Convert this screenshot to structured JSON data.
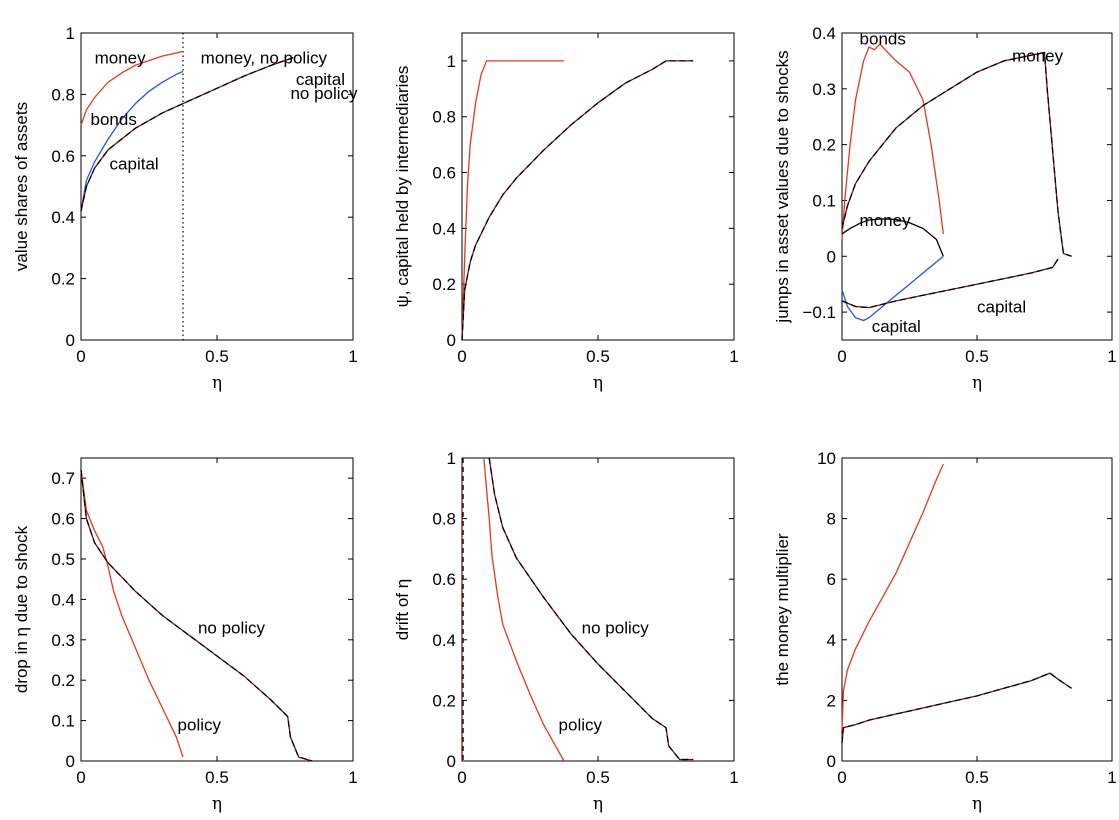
{
  "colors": {
    "policy": "#e8391d",
    "capital_policy": "#2255e8",
    "money_policy": "#000000",
    "no_policy_dash": "#000000",
    "no_policy_base": "#7a1010"
  },
  "chart_data": [
    {
      "id": "p1",
      "type": "line",
      "ylabel": "value shares of assets",
      "xlabel": "η",
      "xlim": [
        0,
        1
      ],
      "ylim": [
        0,
        1
      ],
      "xticks": [
        0,
        0.5,
        1
      ],
      "yticks": [
        0,
        0.2,
        0.4,
        0.6,
        0.8,
        1
      ],
      "xticklabels": [
        "0",
        "0.5",
        "1"
      ],
      "yticklabels": [
        "0",
        "0.2",
        "0.4",
        "0.6",
        "0.8",
        "1"
      ],
      "vlines": [
        {
          "x": 0.375,
          "style": "dotted"
        }
      ],
      "series": [
        {
          "color": "policy",
          "style": "solid",
          "x": [
            0,
            0.02,
            0.05,
            0.1,
            0.15,
            0.2,
            0.25,
            0.3,
            0.35,
            0.375
          ],
          "y": [
            0.7,
            0.75,
            0.79,
            0.84,
            0.87,
            0.895,
            0.91,
            0.925,
            0.935,
            0.94
          ]
        },
        {
          "color": "capital_policy",
          "style": "solid",
          "x": [
            0,
            0.02,
            0.05,
            0.1,
            0.15,
            0.2,
            0.25,
            0.3,
            0.35,
            0.375
          ],
          "y": [
            0.42,
            0.52,
            0.58,
            0.655,
            0.72,
            0.77,
            0.81,
            0.84,
            0.865,
            0.875
          ]
        },
        {
          "color": "no_policy",
          "style": "dashed",
          "x": [
            0,
            0.02,
            0.05,
            0.1,
            0.2,
            0.3,
            0.4,
            0.5,
            0.6,
            0.7,
            0.78
          ],
          "y": [
            0.42,
            0.5,
            0.56,
            0.62,
            0.69,
            0.74,
            0.78,
            0.82,
            0.86,
            0.895,
            0.92
          ]
        }
      ],
      "annotations": [
        {
          "text": "money",
          "x": 0.05,
          "y": 0.92
        },
        {
          "text": "money, no policy",
          "x": 0.44,
          "y": 0.92
        },
        {
          "text": "capital",
          "x": 0.79,
          "y": 0.85
        },
        {
          "text": "no policy",
          "x": 0.77,
          "y": 0.805
        },
        {
          "text": "bonds",
          "x": 0.035,
          "y": 0.72
        },
        {
          "text": "capital",
          "x": 0.105,
          "y": 0.575
        }
      ]
    },
    {
      "id": "p2",
      "type": "line",
      "ylabel": "ψ, capital held by intermediaries",
      "xlabel": "η",
      "xlim": [
        0,
        1
      ],
      "ylim": [
        0,
        1.1
      ],
      "xticks": [
        0,
        0.5,
        1
      ],
      "yticks": [
        0,
        0.2,
        0.4,
        0.6,
        0.8,
        1
      ],
      "xticklabels": [
        "0",
        "0.5",
        "1"
      ],
      "yticklabels": [
        "0",
        "0.2",
        "0.4",
        "0.6",
        "0.8",
        "1"
      ],
      "series": [
        {
          "color": "policy",
          "style": "solid",
          "x": [
            0,
            0.01,
            0.02,
            0.03,
            0.05,
            0.07,
            0.09,
            0.1,
            0.2,
            0.375
          ],
          "y": [
            0,
            0.3,
            0.55,
            0.7,
            0.85,
            0.95,
            1.0,
            1.0,
            1.0,
            1.0
          ]
        },
        {
          "color": "no_policy",
          "style": "dashed",
          "x": [
            0,
            0.01,
            0.03,
            0.05,
            0.1,
            0.15,
            0.2,
            0.3,
            0.4,
            0.5,
            0.6,
            0.7,
            0.75,
            0.85
          ],
          "y": [
            0,
            0.18,
            0.28,
            0.34,
            0.44,
            0.52,
            0.58,
            0.68,
            0.77,
            0.85,
            0.92,
            0.97,
            1.0,
            1.0
          ]
        }
      ],
      "annotations": []
    },
    {
      "id": "p3",
      "type": "line",
      "ylabel": "jumps in asset values due to shocks",
      "xlabel": "η",
      "xlim": [
        0,
        1
      ],
      "ylim": [
        -0.15,
        0.4
      ],
      "xticks": [
        0,
        0.5,
        1
      ],
      "yticks": [
        -0.1,
        0,
        0.1,
        0.2,
        0.3,
        0.4
      ],
      "xticklabels": [
        "0",
        "0.5",
        "1"
      ],
      "yticklabels": [
        "−0.1",
        "0",
        "0.1",
        "0.2",
        "0.3",
        "0.4"
      ],
      "series": [
        {
          "color": "policy",
          "style": "solid",
          "x": [
            0,
            0.01,
            0.03,
            0.05,
            0.08,
            0.1,
            0.12,
            0.14,
            0.16,
            0.2,
            0.25,
            0.3,
            0.33,
            0.36,
            0.375
          ],
          "y": [
            0.03,
            0.1,
            0.2,
            0.28,
            0.35,
            0.375,
            0.37,
            0.38,
            0.37,
            0.35,
            0.33,
            0.28,
            0.2,
            0.1,
            0.04
          ]
        },
        {
          "color": "money_policy",
          "style": "solid",
          "x": [
            0,
            0.03,
            0.07,
            0.1,
            0.15,
            0.2,
            0.25,
            0.3,
            0.35,
            0.375
          ],
          "y": [
            0.04,
            0.05,
            0.06,
            0.065,
            0.067,
            0.066,
            0.06,
            0.05,
            0.03,
            0.0
          ]
        },
        {
          "color": "capital_policy",
          "style": "solid",
          "x": [
            0,
            0.02,
            0.05,
            0.08,
            0.1,
            0.15,
            0.2,
            0.25,
            0.3,
            0.35,
            0.375
          ],
          "y": [
            -0.06,
            -0.09,
            -0.11,
            -0.115,
            -0.11,
            -0.09,
            -0.07,
            -0.05,
            -0.03,
            -0.01,
            0.0
          ]
        },
        {
          "color": "no_policy",
          "style": "dashed",
          "x": [
            0,
            0.02,
            0.05,
            0.1,
            0.2,
            0.3,
            0.4,
            0.5,
            0.6,
            0.7,
            0.75,
            0.76,
            0.8,
            0.82,
            0.85
          ],
          "y": [
            0.05,
            0.09,
            0.13,
            0.17,
            0.23,
            0.27,
            0.3,
            0.33,
            0.35,
            0.36,
            0.365,
            0.3,
            0.08,
            0.005,
            0.0
          ]
        },
        {
          "color": "no_policy",
          "style": "dashed",
          "x": [
            0,
            0.05,
            0.1,
            0.2,
            0.3,
            0.4,
            0.5,
            0.6,
            0.7,
            0.78,
            0.8
          ],
          "y": [
            -0.08,
            -0.09,
            -0.092,
            -0.08,
            -0.07,
            -0.06,
            -0.05,
            -0.04,
            -0.03,
            -0.02,
            -0.005
          ]
        }
      ],
      "annotations": [
        {
          "text": "bonds",
          "x": 0.065,
          "y": 0.39
        },
        {
          "text": "money",
          "x": 0.63,
          "y": 0.36
        },
        {
          "text": "money",
          "x": 0.065,
          "y": 0.065
        },
        {
          "text": "capital",
          "x": 0.5,
          "y": -0.09
        },
        {
          "text": "capital",
          "x": 0.11,
          "y": -0.125
        }
      ]
    },
    {
      "id": "p4",
      "type": "line",
      "ylabel": "drop in η due to shock",
      "xlabel": "η",
      "xlim": [
        0,
        1
      ],
      "ylim": [
        0,
        0.75
      ],
      "xticks": [
        0,
        0.5,
        1
      ],
      "yticks": [
        0,
        0.1,
        0.2,
        0.3,
        0.4,
        0.5,
        0.6,
        0.7
      ],
      "xticklabels": [
        "0",
        "0.5",
        "1"
      ],
      "yticklabels": [
        "0",
        "0.1",
        "0.2",
        "0.3",
        "0.4",
        "0.5",
        "0.6",
        "0.7"
      ],
      "series": [
        {
          "color": "policy",
          "style": "solid",
          "x": [
            0,
            0.02,
            0.05,
            0.08,
            0.1,
            0.12,
            0.15,
            0.2,
            0.25,
            0.3,
            0.35,
            0.375
          ],
          "y": [
            0.72,
            0.62,
            0.57,
            0.53,
            0.48,
            0.42,
            0.36,
            0.28,
            0.2,
            0.13,
            0.06,
            0.01
          ]
        },
        {
          "color": "no_policy",
          "style": "dashed",
          "x": [
            0,
            0.02,
            0.05,
            0.1,
            0.2,
            0.3,
            0.4,
            0.5,
            0.6,
            0.7,
            0.76,
            0.77,
            0.8,
            0.85
          ],
          "y": [
            0.72,
            0.6,
            0.54,
            0.49,
            0.42,
            0.36,
            0.31,
            0.26,
            0.21,
            0.15,
            0.11,
            0.06,
            0.01,
            0.0
          ]
        }
      ],
      "annotations": [
        {
          "text": "no policy",
          "x": 0.43,
          "y": 0.33
        },
        {
          "text": "policy",
          "x": 0.355,
          "y": 0.09
        }
      ]
    },
    {
      "id": "p5",
      "type": "line",
      "ylabel": "drift of η",
      "xlabel": "η",
      "xlim": [
        0,
        1
      ],
      "ylim": [
        0,
        1
      ],
      "xticks": [
        0,
        0.5,
        1
      ],
      "yticks": [
        0,
        0.2,
        0.4,
        0.6,
        0.8,
        1
      ],
      "xticklabels": [
        "0",
        "0.5",
        "1"
      ],
      "yticklabels": [
        "0",
        "0.2",
        "0.4",
        "0.6",
        "0.8",
        "1"
      ],
      "vlines_series": [
        {
          "color": "no_policy_base",
          "x": 0.004
        }
      ],
      "series": [
        {
          "color": "policy",
          "style": "solid",
          "x": [
            0.08,
            0.09,
            0.1,
            0.11,
            0.13,
            0.15,
            0.2,
            0.25,
            0.3,
            0.35,
            0.375
          ],
          "y": [
            1.0,
            0.9,
            0.8,
            0.68,
            0.55,
            0.45,
            0.33,
            0.22,
            0.12,
            0.04,
            0.0
          ]
        },
        {
          "color": "no_policy",
          "style": "dashed",
          "x": [
            0.1,
            0.12,
            0.15,
            0.2,
            0.3,
            0.4,
            0.5,
            0.6,
            0.7,
            0.75,
            0.76,
            0.8,
            0.85
          ],
          "y": [
            1.0,
            0.88,
            0.77,
            0.67,
            0.54,
            0.42,
            0.32,
            0.23,
            0.14,
            0.11,
            0.05,
            0.005,
            0.005
          ]
        }
      ],
      "annotations": [
        {
          "text": "no policy",
          "x": 0.44,
          "y": 0.44
        },
        {
          "text": "policy",
          "x": 0.355,
          "y": 0.12
        }
      ]
    },
    {
      "id": "p6",
      "type": "line",
      "ylabel": "the money multiplier",
      "xlabel": "η",
      "xlim": [
        0,
        1
      ],
      "ylim": [
        0,
        10
      ],
      "xticks": [
        0,
        0.5,
        1
      ],
      "yticks": [
        0,
        2,
        4,
        6,
        8,
        10
      ],
      "xticklabels": [
        "0",
        "0.5",
        "1"
      ],
      "yticklabels": [
        "0",
        "2",
        "4",
        "6",
        "8",
        "10"
      ],
      "series": [
        {
          "color": "policy",
          "style": "solid",
          "x": [
            0,
            0.005,
            0.02,
            0.05,
            0.1,
            0.15,
            0.2,
            0.25,
            0.3,
            0.35,
            0.375
          ],
          "y": [
            1.0,
            2.3,
            3.0,
            3.7,
            4.6,
            5.4,
            6.2,
            7.2,
            8.2,
            9.3,
            9.8
          ]
        },
        {
          "color": "no_policy",
          "style": "dashed",
          "x": [
            0,
            0.005,
            0.05,
            0.1,
            0.2,
            0.3,
            0.4,
            0.5,
            0.6,
            0.7,
            0.77,
            0.8,
            0.85
          ],
          "y": [
            0.6,
            1.1,
            1.2,
            1.35,
            1.55,
            1.75,
            1.95,
            2.15,
            2.4,
            2.65,
            2.9,
            2.7,
            2.4
          ]
        }
      ],
      "annotations": []
    }
  ]
}
